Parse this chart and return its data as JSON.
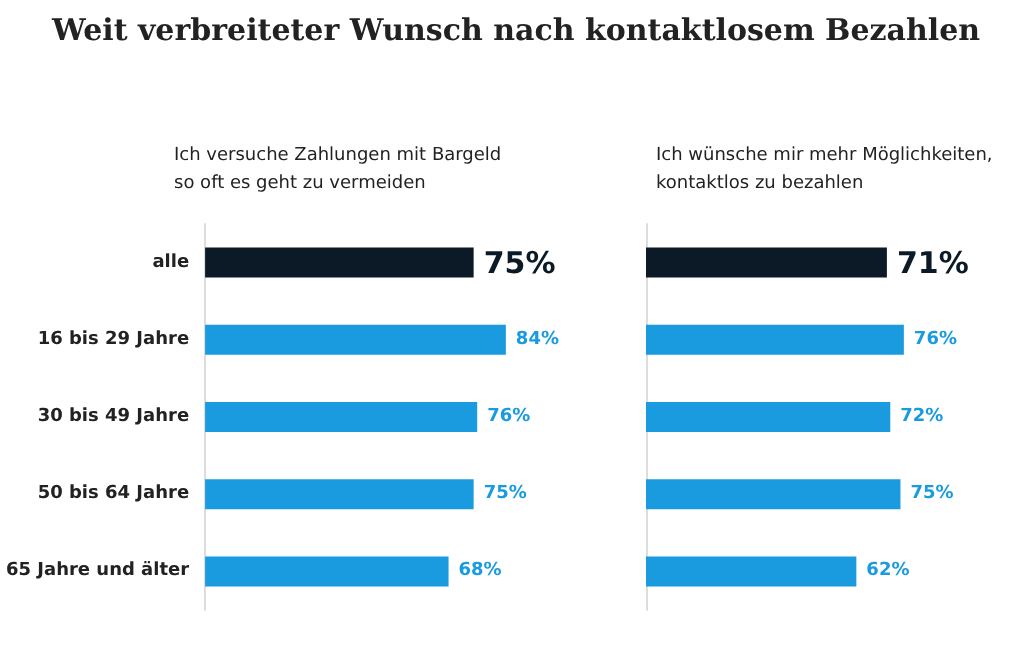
{
  "chart_data": [
    {
      "type": "bar",
      "orientation": "horizontal",
      "title": "Weit verbreiteter Wunsch nach kontaktlosem Bezahlen",
      "subtitle": "Ich versuche Zahlungen mit Bargeld\nso oft es geht zu vermeiden",
      "categories": [
        "alle",
        "16 bis 29 Jahre",
        "30 bis 49 Jahre",
        "50 bis 64 Jahre",
        "65 Jahre und älter"
      ],
      "values": [
        75,
        84,
        76,
        75,
        68
      ],
      "colors": [
        "#0b1a26",
        "#1a9be0",
        "#1a9be0",
        "#1a9be0",
        "#1a9be0"
      ],
      "value_labels": [
        "75%",
        "84%",
        "76%",
        "75%",
        "68%"
      ]
    },
    {
      "type": "bar",
      "orientation": "horizontal",
      "subtitle": "Ich wünsche mir mehr Möglichkeiten,\nkontaktlos zu bezahlen",
      "categories": [
        null,
        null,
        null,
        null,
        null
      ],
      "values": [
        71,
        76,
        72,
        75,
        62
      ],
      "colors": [
        "#0b1a26",
        "#1a9be0",
        "#1a9be0",
        "#1a9be0",
        "#1a9be0"
      ],
      "value_labels": [
        "71%",
        "76%",
        "72%",
        "75%",
        "62%"
      ],
      "tick_labels": false
    }
  ]
}
